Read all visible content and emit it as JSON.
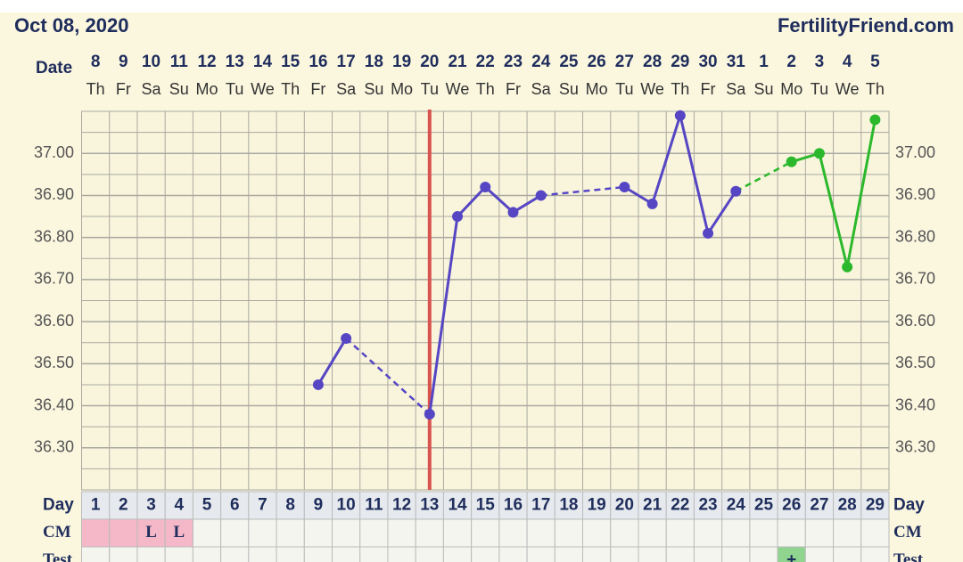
{
  "header": {
    "date": "Oct 08, 2020",
    "site": "FertilityFriend.com"
  },
  "chart_data": {
    "type": "line",
    "x_label": "Date",
    "categories": [
      "8",
      "9",
      "10",
      "11",
      "12",
      "13",
      "14",
      "15",
      "16",
      "17",
      "18",
      "19",
      "20",
      "21",
      "22",
      "23",
      "24",
      "25",
      "26",
      "27",
      "28",
      "29",
      "30",
      "31",
      "1",
      "2",
      "3",
      "4",
      "5"
    ],
    "weekdays": [
      "Th",
      "Fr",
      "Sa",
      "Su",
      "Mo",
      "Tu",
      "We",
      "Th",
      "Fr",
      "Sa",
      "Su",
      "Mo",
      "Tu",
      "We",
      "Th",
      "Fr",
      "Sa",
      "Su",
      "Mo",
      "Tu",
      "We",
      "Th",
      "Fr",
      "Sa",
      "Su",
      "Mo",
      "Tu",
      "We",
      "Th"
    ],
    "series": [
      {
        "color": "#5646c4",
        "values": [
          null,
          null,
          null,
          null,
          null,
          null,
          null,
          null,
          36.45,
          36.56,
          null,
          null,
          36.38,
          36.85,
          36.92,
          36.86,
          36.9,
          null,
          null,
          36.92,
          36.88,
          37.09,
          36.81,
          36.91,
          null,
          null,
          null,
          null,
          null
        ]
      },
      {
        "color": "#2cb82c",
        "values": [
          null,
          null,
          null,
          null,
          null,
          null,
          null,
          null,
          null,
          null,
          null,
          null,
          null,
          null,
          null,
          null,
          null,
          null,
          null,
          null,
          null,
          null,
          null,
          null,
          null,
          36.98,
          37.0,
          36.73,
          37.08
        ]
      }
    ],
    "ylim": [
      36.2,
      37.1
    ],
    "yticks": [
      {
        "value": 36.3,
        "label": "36.30"
      },
      {
        "value": 36.4,
        "label": "36.40"
      },
      {
        "value": 36.5,
        "label": "36.50"
      },
      {
        "value": 36.6,
        "label": "36.60"
      },
      {
        "value": 36.7,
        "label": "36.70"
      },
      {
        "value": 36.8,
        "label": "36.80"
      },
      {
        "value": 36.9,
        "label": "36.90"
      },
      {
        "value": 37.0,
        "label": "37.00"
      }
    ],
    "grid": true,
    "marker_line": {
      "day": 13,
      "color": "#d9534f"
    }
  },
  "table": {
    "day_label": "Day",
    "days": [
      1,
      2,
      3,
      4,
      5,
      6,
      7,
      8,
      9,
      10,
      11,
      12,
      13,
      14,
      15,
      16,
      17,
      18,
      19,
      20,
      21,
      22,
      23,
      24,
      25,
      26,
      27,
      28,
      29
    ],
    "cm_label": "CM",
    "cm": [
      null,
      null,
      "L",
      "L",
      null,
      null,
      null,
      null,
      null,
      null,
      null,
      null,
      null,
      null,
      null,
      null,
      null,
      null,
      null,
      null,
      null,
      null,
      null,
      null,
      null,
      null,
      null,
      null,
      null
    ],
    "cm_color": "#f4b8c8",
    "cm_colored": [
      1,
      2,
      3,
      4
    ],
    "test_label": "Test",
    "test": [
      null,
      null,
      null,
      null,
      null,
      null,
      null,
      null,
      null,
      null,
      null,
      null,
      null,
      null,
      null,
      null,
      null,
      null,
      null,
      null,
      null,
      null,
      null,
      null,
      null,
      "+",
      null,
      null,
      null
    ],
    "test_color": "#8fd48f"
  }
}
